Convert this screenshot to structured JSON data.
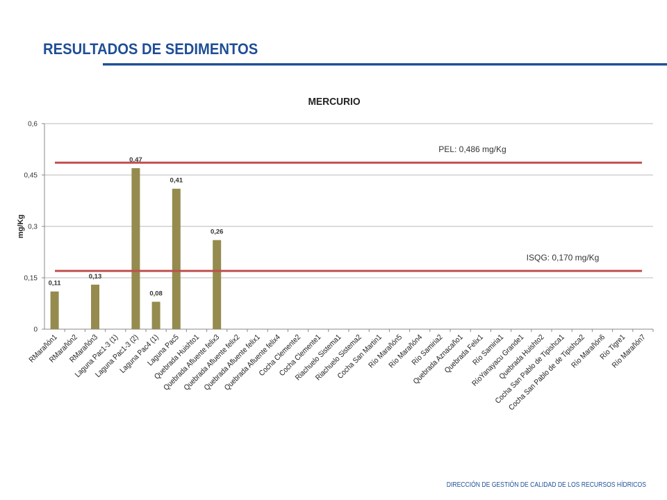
{
  "header": {
    "title": "RESULTADOS DE SEDIMENTOS"
  },
  "footer": {
    "text": "DIRECCIÓN DE GESTIÓN DE CALIDAD DE LOS RECURSOS HÍDRICOS"
  },
  "colors": {
    "title": "#1f4e96",
    "bar": "#958b4f",
    "threshold_line": "#c0504d",
    "gridline": "#b9b9b9"
  },
  "chart_data": {
    "type": "bar",
    "title": "MERCURIO",
    "xlabel": "",
    "ylabel": "mg/Kg",
    "ylim": [
      0,
      0.6
    ],
    "yticks": [
      "0",
      "0,15",
      "0,3",
      "0,45",
      "0,6"
    ],
    "grid": true,
    "legend": "none",
    "categories": [
      "RMarañón1",
      "RMarañón2",
      "RMarañón3",
      "Laguna Pac1-3 (1)",
      "Laguna Pac1-3 (2)",
      "Laguna Pac4 (1)",
      "Laguna Pac5",
      "Quebrada Huishto1",
      "Quebrada Afluente felix3",
      "Quebrada Afluente felix2",
      "Quebrada Afluente felix1",
      "Quebrada Afluente felix4",
      "Cocha Clemente2",
      "Cocha Clemente1",
      "Riachuelo Sistema1",
      "Riachuelo Sistema2",
      "Cocha San Martin1",
      "Río Marañón5",
      "Río Marañón4",
      "Río Samiria2",
      "Quebrada Aznacaño1",
      "Quebrada Felix1",
      "Río Samiria1",
      "RíoYanayacu Grande1",
      "Quebrada Huishto2",
      "Cocha San Pablo de Tipishca1",
      "Cocha San Pablo de de Tipishca2",
      "Río Marañón6",
      "Río Tigre1",
      "Río Marañón7"
    ],
    "values": [
      0.11,
      null,
      0.13,
      null,
      0.47,
      0.08,
      0.41,
      null,
      0.26,
      null,
      null,
      null,
      null,
      null,
      null,
      null,
      null,
      null,
      null,
      null,
      null,
      null,
      null,
      null,
      null,
      null,
      null,
      null,
      null,
      null
    ],
    "data_labels": [
      "0,11",
      "",
      "0,13",
      "",
      "0,47",
      "0,08",
      "0,41",
      "",
      "0,26",
      "",
      "",
      "",
      "",
      "",
      "",
      "",
      "",
      "",
      "",
      "",
      "",
      "",
      "",
      "",
      "",
      "",
      "",
      "",
      "",
      ""
    ],
    "reference_lines": [
      {
        "label": "PEL: 0,486 mg/Kg",
        "value": 0.486
      },
      {
        "label": "ISQG: 0,170 mg/Kg",
        "value": 0.17
      }
    ]
  }
}
